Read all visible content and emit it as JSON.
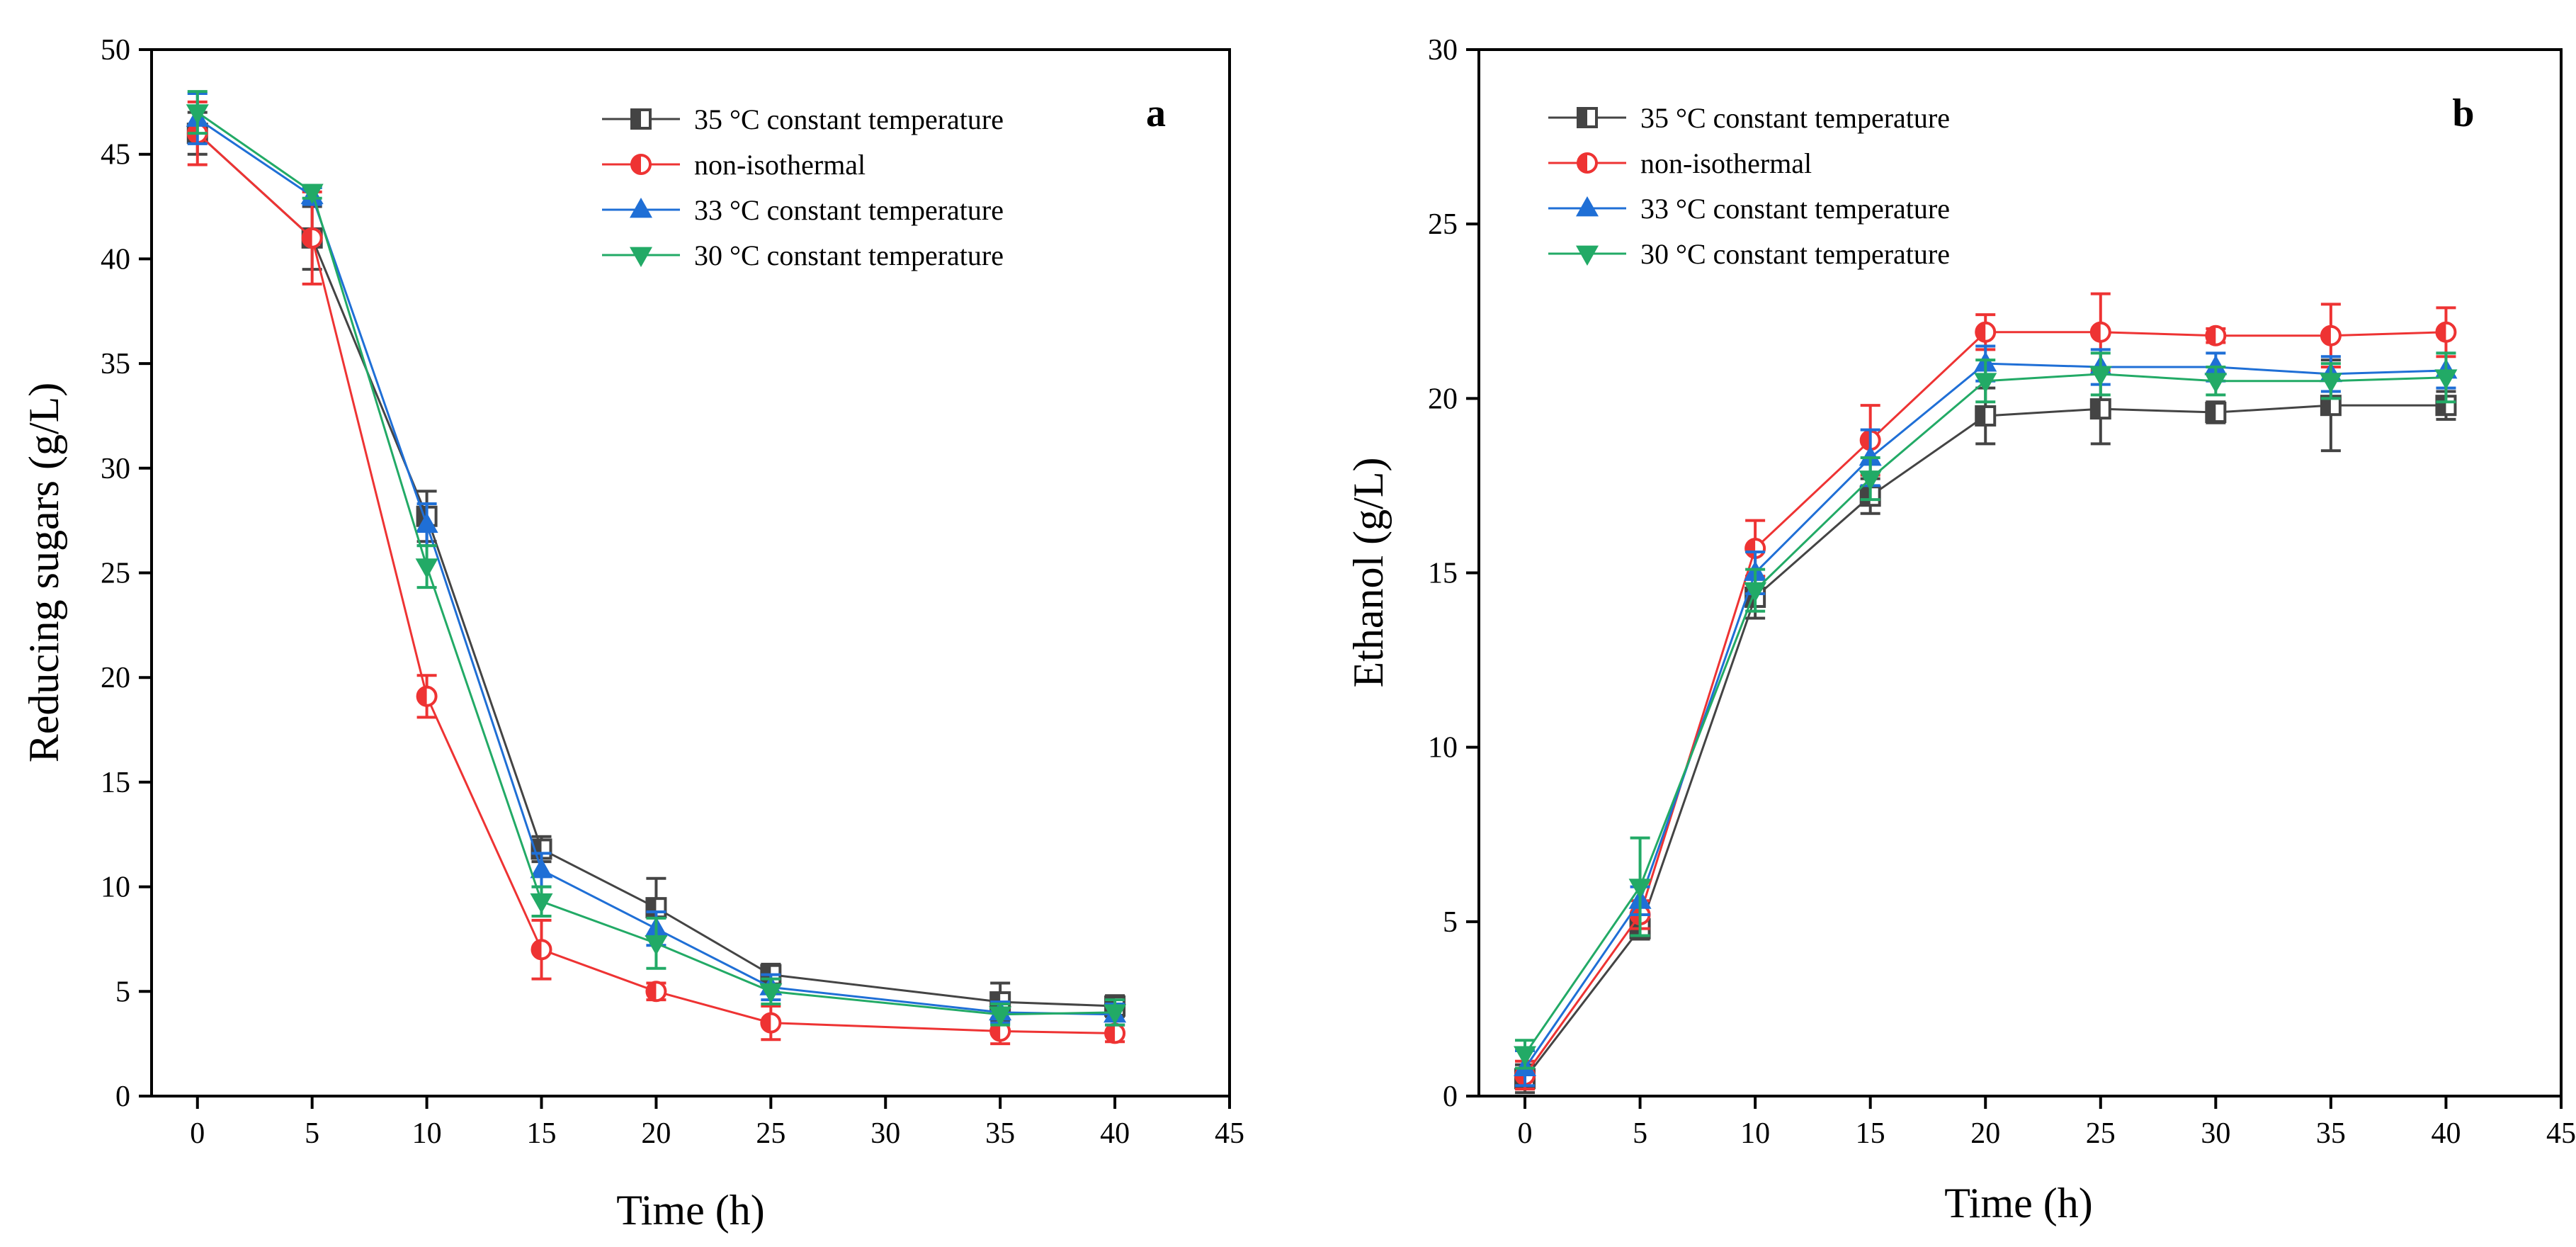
{
  "chart_data": [
    {
      "type": "line",
      "panel": "a",
      "title": "",
      "xlabel": "Time (h)",
      "ylabel": "Reducing sugars (g/L)",
      "xlim": [
        -2,
        45
      ],
      "ylim": [
        0,
        50
      ],
      "xticks": [
        0,
        5,
        10,
        15,
        20,
        25,
        30,
        35,
        40,
        45
      ],
      "yticks": [
        0,
        5,
        10,
        15,
        20,
        25,
        30,
        35,
        40,
        45,
        50
      ],
      "x": [
        0,
        5,
        10,
        15,
        20,
        25,
        35,
        40
      ],
      "legend_position": "top-right",
      "series": [
        {
          "name": "35 °C constant temperature",
          "color": "#444444",
          "marker": "square",
          "values": [
            46.0,
            41.0,
            27.7,
            11.8,
            9.0,
            5.8,
            4.5,
            4.3
          ],
          "errors": [
            1.0,
            1.5,
            1.2,
            0.6,
            1.4,
            0.5,
            0.9,
            0.5
          ]
        },
        {
          "name": "non-isothermal",
          "color": "#ee3333",
          "marker": "circle",
          "values": [
            46.0,
            41.0,
            19.1,
            7.0,
            5.0,
            3.5,
            3.1,
            3.0
          ],
          "errors": [
            1.5,
            2.2,
            1.0,
            1.4,
            0.4,
            0.8,
            0.6,
            0.4
          ]
        },
        {
          "name": "33 °C constant temperature",
          "color": "#1f6fd6",
          "marker": "triangle-up",
          "values": [
            46.7,
            43.0,
            27.3,
            10.8,
            8.0,
            5.2,
            4.0,
            3.9
          ],
          "errors": [
            1.2,
            0.4,
            1.0,
            0.8,
            0.8,
            0.6,
            0.5,
            0.5
          ]
        },
        {
          "name": "30 °C constant temperature",
          "color": "#22aa66",
          "marker": "triangle-down",
          "values": [
            47.0,
            43.2,
            25.3,
            9.3,
            7.3,
            5.0,
            3.9,
            4.0
          ],
          "errors": [
            1.0,
            0.3,
            1.0,
            0.7,
            1.2,
            0.6,
            0.5,
            0.6
          ]
        }
      ]
    },
    {
      "type": "line",
      "panel": "b",
      "title": "",
      "xlabel": "Time (h)",
      "ylabel": "Ethanol (g/L)",
      "xlim": [
        -2,
        45
      ],
      "ylim": [
        0,
        30
      ],
      "xticks": [
        0,
        5,
        10,
        15,
        20,
        25,
        30,
        35,
        40,
        45
      ],
      "yticks": [
        0,
        5,
        10,
        15,
        20,
        25,
        30
      ],
      "x": [
        0,
        5,
        10,
        15,
        20,
        25,
        30,
        35,
        40
      ],
      "legend_position": "top-right",
      "series": [
        {
          "name": "35 °C constant temperature",
          "color": "#444444",
          "marker": "square",
          "values": [
            0.5,
            4.8,
            14.3,
            17.2,
            19.5,
            19.7,
            19.6,
            19.8,
            19.8
          ],
          "errors": [
            0.4,
            0.3,
            0.6,
            0.5,
            0.8,
            1.0,
            0.3,
            1.3,
            0.4
          ]
        },
        {
          "name": "non-isothermal",
          "color": "#ee3333",
          "marker": "circle",
          "values": [
            0.6,
            5.2,
            15.7,
            18.8,
            21.9,
            21.9,
            21.8,
            21.8,
            21.9
          ],
          "errors": [
            0.4,
            0.4,
            0.8,
            1.0,
            0.5,
            1.1,
            0.2,
            0.9,
            0.7
          ]
        },
        {
          "name": "33 °C constant temperature",
          "color": "#1f6fd6",
          "marker": "triangle-up",
          "values": [
            0.8,
            5.6,
            15.0,
            18.3,
            21.0,
            20.9,
            20.9,
            20.7,
            20.8
          ],
          "errors": [
            0.5,
            0.4,
            0.6,
            0.8,
            0.5,
            0.5,
            0.4,
            0.5,
            0.5
          ]
        },
        {
          "name": "30 °C constant temperature",
          "color": "#22aa66",
          "marker": "triangle-down",
          "values": [
            1.2,
            6.0,
            14.5,
            17.7,
            20.5,
            20.7,
            20.5,
            20.5,
            20.6
          ],
          "errors": [
            0.4,
            1.4,
            0.6,
            0.6,
            0.6,
            0.6,
            0.4,
            0.5,
            0.7
          ]
        }
      ]
    }
  ]
}
